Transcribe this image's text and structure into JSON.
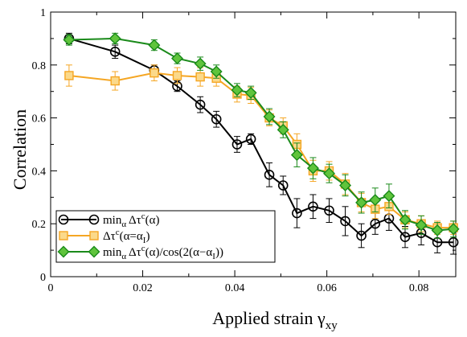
{
  "chart_data": {
    "type": "line",
    "title": "",
    "xlabel": "Applied strain γ",
    "xlabel_sub": "xy",
    "ylabel": "Correlation",
    "xlim": [
      0,
      0.088
    ],
    "ylim": [
      0,
      1
    ],
    "xticks": [
      0,
      0.02,
      0.04,
      0.06,
      0.08
    ],
    "xtick_labels": [
      "0",
      "0.02",
      "0.04",
      "0.06",
      "0.08"
    ],
    "yticks": [
      0,
      0.2,
      0.4,
      0.6,
      0.8,
      1
    ],
    "ytick_labels": [
      "0",
      "0.2",
      "0.4",
      "0.6",
      "0.8",
      "1"
    ],
    "grid": false,
    "legend_position": "bottom-left",
    "series": [
      {
        "id": "black",
        "legend_parts": [
          {
            "t": "min"
          },
          {
            "t": "α",
            "sub": true
          },
          {
            "t": " Δτ"
          },
          {
            "t": "c",
            "sup": true
          },
          {
            "t": "(α)"
          }
        ],
        "color": "#000000",
        "fill": "none",
        "marker": "circle",
        "x": [
          0.004,
          0.014,
          0.0225,
          0.0275,
          0.0325,
          0.036,
          0.0405,
          0.0435,
          0.0475,
          0.0505,
          0.0535,
          0.057,
          0.0605,
          0.064,
          0.0675,
          0.0705,
          0.0735,
          0.077,
          0.0805,
          0.084,
          0.0875
        ],
        "y": [
          0.9,
          0.85,
          0.78,
          0.72,
          0.65,
          0.595,
          0.5,
          0.52,
          0.385,
          0.345,
          0.24,
          0.265,
          0.25,
          0.21,
          0.155,
          0.2,
          0.22,
          0.15,
          0.165,
          0.13,
          0.13
        ],
        "err": [
          0.02,
          0.025,
          0.02,
          0.02,
          0.03,
          0.03,
          0.03,
          0.02,
          0.045,
          0.035,
          0.055,
          0.045,
          0.045,
          0.055,
          0.045,
          0.04,
          0.045,
          0.04,
          0.045,
          0.04,
          0.045
        ]
      },
      {
        "id": "orange",
        "legend_parts": [
          {
            "t": "Δτ"
          },
          {
            "t": "c",
            "sup": true
          },
          {
            "t": "(α=α"
          },
          {
            "t": "I",
            "sub": true
          },
          {
            "t": ")"
          }
        ],
        "color": "#f5a623",
        "fill": "#fbd98a",
        "marker": "square",
        "x": [
          0.004,
          0.014,
          0.0225,
          0.0275,
          0.0325,
          0.036,
          0.0405,
          0.0435,
          0.0475,
          0.0505,
          0.0535,
          0.057,
          0.0605,
          0.064,
          0.0675,
          0.0705,
          0.0735,
          0.077,
          0.0805,
          0.084,
          0.0875
        ],
        "y": [
          0.76,
          0.74,
          0.77,
          0.76,
          0.755,
          0.75,
          0.69,
          0.685,
          0.6,
          0.57,
          0.5,
          0.4,
          0.4,
          0.35,
          0.28,
          0.255,
          0.265,
          0.215,
          0.2,
          0.185,
          0.185
        ],
        "err": [
          0.04,
          0.035,
          0.03,
          0.03,
          0.035,
          0.03,
          0.03,
          0.03,
          0.03,
          0.03,
          0.04,
          0.04,
          0.035,
          0.04,
          0.035,
          0.035,
          0.03,
          0.03,
          0.03,
          0.025,
          0.025
        ]
      },
      {
        "id": "green",
        "legend_parts": [
          {
            "t": "min"
          },
          {
            "t": "α",
            "sub": true
          },
          {
            "t": " Δτ"
          },
          {
            "t": "c",
            "sup": true
          },
          {
            "t": "(α)/cos(2(α−α"
          },
          {
            "t": "I",
            "sub": true
          },
          {
            "t": "))"
          }
        ],
        "color": "#1a8a1a",
        "fill": "#5fc43c",
        "marker": "diamond",
        "x": [
          0.004,
          0.014,
          0.0225,
          0.0275,
          0.0325,
          0.036,
          0.0405,
          0.0435,
          0.0475,
          0.0505,
          0.0535,
          0.057,
          0.0605,
          0.064,
          0.0675,
          0.0705,
          0.0735,
          0.077,
          0.0805,
          0.084,
          0.0875
        ],
        "y": [
          0.895,
          0.9,
          0.875,
          0.825,
          0.805,
          0.775,
          0.705,
          0.695,
          0.605,
          0.555,
          0.46,
          0.41,
          0.39,
          0.345,
          0.28,
          0.29,
          0.305,
          0.215,
          0.195,
          0.175,
          0.18
        ],
        "err": [
          0.02,
          0.02,
          0.02,
          0.02,
          0.025,
          0.025,
          0.025,
          0.025,
          0.03,
          0.03,
          0.045,
          0.04,
          0.035,
          0.04,
          0.04,
          0.045,
          0.045,
          0.035,
          0.035,
          0.03,
          0.03
        ]
      }
    ]
  }
}
